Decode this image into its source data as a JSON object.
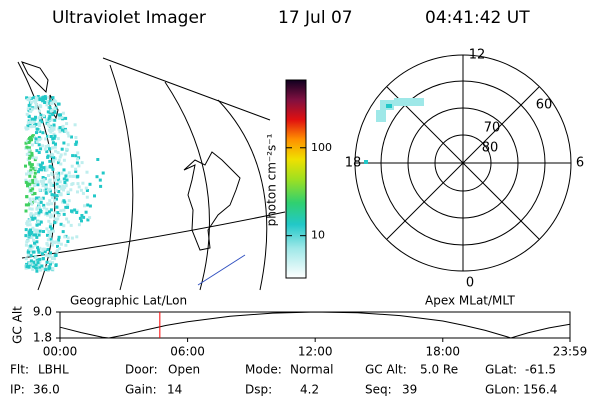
{
  "header": {
    "title": "Ultraviolet Imager",
    "date": "17 Jul 07",
    "time": "04:41:42 UT"
  },
  "colorbar": {
    "label": "photon cm⁻²s⁻¹",
    "log_scale": true,
    "lim": [
      3.3,
      590
    ],
    "ticks": [
      10,
      100
    ]
  },
  "polar": {
    "mlt_labels": [
      "12",
      "6",
      "0",
      "18"
    ],
    "ring_labels": [
      "80",
      "70",
      "60"
    ]
  },
  "chart_data": {
    "type": "line",
    "y_label": "GC Alt",
    "left_title": "Geographic Lat/Lon",
    "right_title": "Apex MLat/MLT",
    "x": [
      0,
      1,
      2,
      2.3,
      3,
      4,
      5,
      6,
      8,
      10,
      12,
      14,
      16,
      18,
      19,
      20,
      21,
      21.2,
      22,
      23,
      23.983
    ],
    "values": [
      4.8,
      3.3,
      2.0,
      1.8,
      2.6,
      4.0,
      5.3,
      6.3,
      7.8,
      8.7,
      9.0,
      8.8,
      8.0,
      6.5,
      5.3,
      3.9,
      2.2,
      1.8,
      3.2,
      4.6,
      5.6
    ],
    "color": "#000000",
    "marker_x": 4.695,
    "marker_color": "#ff0000",
    "xlim": [
      0,
      23.983
    ],
    "xticks": [
      {
        "value": 0,
        "label": "00:00"
      },
      {
        "value": 6,
        "label": "06:00"
      },
      {
        "value": 12,
        "label": "12:00"
      },
      {
        "value": 18,
        "label": "18:00"
      },
      {
        "value": 23.983,
        "label": "23:59"
      }
    ],
    "ylim": [
      1.8,
      9.0
    ],
    "yticks": [
      {
        "value": 9.0,
        "label": "9.0"
      },
      1.8
    ]
  },
  "info": {
    "rows": [
      [
        [
          "Flt:",
          "LBHL"
        ],
        [
          "Door:",
          "Open"
        ],
        [
          "Mode:",
          "Normal"
        ],
        [
          "GC Alt:",
          "5.0 Re"
        ],
        [
          "GLat:",
          "-61.5"
        ]
      ],
      [
        [
          "IP:",
          "36.0"
        ],
        [
          "Gain:",
          "14"
        ],
        [
          "Dsp:",
          "4.2"
        ],
        [
          "Seq:",
          "39"
        ],
        [
          "GLon:",
          "156.4"
        ]
      ]
    ]
  }
}
